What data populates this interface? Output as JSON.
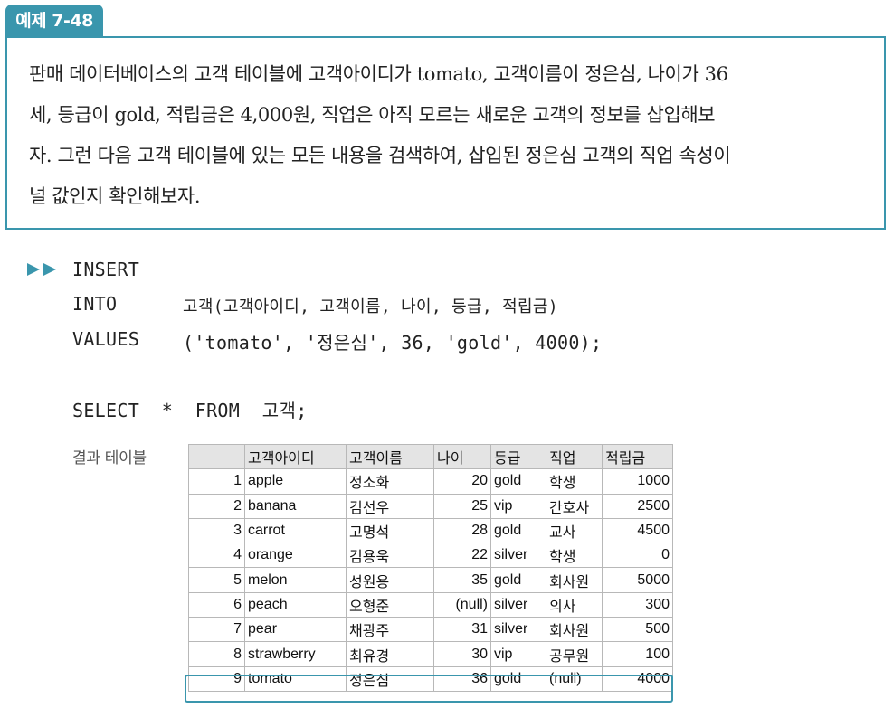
{
  "example": {
    "tag": "예제 7-48",
    "lines": [
      "판매 데이터베이스의 고객 테이블에 고객아이디가 tomato, 고객이름이 정은심, 나이가 36",
      "세, 등급이 gold, 적립금은 4,000원, 직업은 아직 모르는 새로운 고객의 정보를 삽입해보",
      "자. 그런 다음 고객 테이블에 있는 모든 내용을 검색하여, 삽입된 정은심 고객의 직업 속성이",
      "널 값인지 확인해보자."
    ]
  },
  "sql": {
    "insert_kw": "INSERT",
    "into_kw": "INTO",
    "into_arg": "고객(고객아이디, 고객이름, 나이, 등급, 적립금)",
    "values_kw": "VALUES",
    "values_arg": "('tomato', '정은심', 36, 'gold', 4000);",
    "select_stmt": "SELECT  *  FROM  고객;"
  },
  "result": {
    "label": "결과 테이블",
    "columns": [
      "",
      "고객아이디",
      "고객이름",
      "나이",
      "등급",
      "직업",
      "적립금"
    ],
    "rows": [
      [
        "1",
        "apple",
        "정소화",
        "20",
        "gold",
        "학생",
        "1000"
      ],
      [
        "2",
        "banana",
        "김선우",
        "25",
        "vip",
        "간호사",
        "2500"
      ],
      [
        "3",
        "carrot",
        "고명석",
        "28",
        "gold",
        "교사",
        "4500"
      ],
      [
        "4",
        "orange",
        "김용욱",
        "22",
        "silver",
        "학생",
        "0"
      ],
      [
        "5",
        "melon",
        "성원용",
        "35",
        "gold",
        "회사원",
        "5000"
      ],
      [
        "6",
        "peach",
        "오형준",
        "(null)",
        "silver",
        "의사",
        "300"
      ],
      [
        "7",
        "pear",
        "채광주",
        "31",
        "silver",
        "회사원",
        "500"
      ],
      [
        "8",
        "strawberry",
        "최유경",
        "30",
        "vip",
        "공무원",
        "100"
      ],
      [
        "9",
        "tomato",
        "정은심",
        "36",
        "gold",
        "(null)",
        "4000"
      ]
    ]
  },
  "colors": {
    "accent": "#3a96ad"
  },
  "icons": {
    "run_marker": "double-triangle-arrow-icon"
  }
}
